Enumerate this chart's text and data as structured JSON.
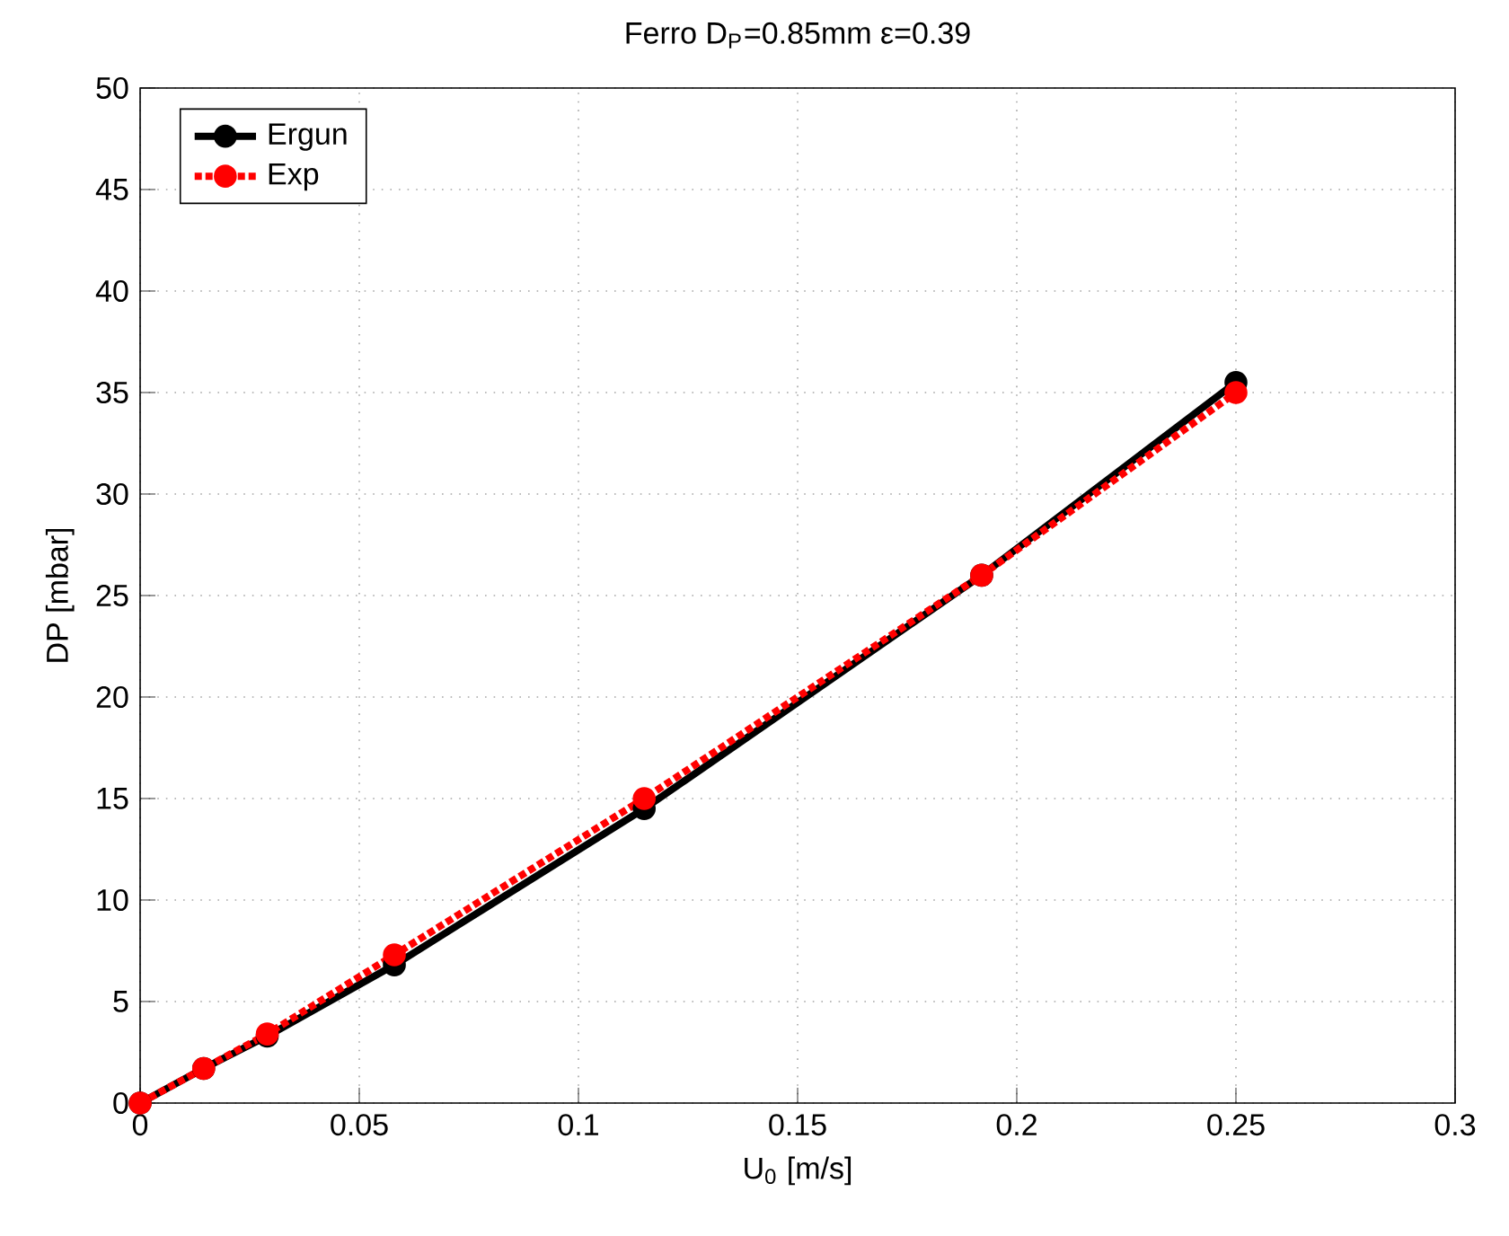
{
  "chart_data": {
    "type": "line",
    "title": "Ferro D$_{P}$=0.85mm ε=0.39",
    "xlabel": "U$_{0}$ [m/s]",
    "ylabel": "DP [mbar]",
    "xlim": [
      0,
      0.3
    ],
    "ylim": [
      0,
      50
    ],
    "xticks": [
      0,
      0.05,
      0.1,
      0.15,
      0.2,
      0.25,
      0.3
    ],
    "yticks": [
      0,
      5,
      10,
      15,
      20,
      25,
      30,
      35,
      40,
      45,
      50
    ],
    "grid": true,
    "legend": "top left",
    "marker": "circle",
    "series": [
      {
        "name": "Ergun",
        "color": "#000000",
        "line_style": "solid",
        "x": [
          0,
          0.0145,
          0.029,
          0.058,
          0.115,
          0.192,
          0.25
        ],
        "values": [
          0,
          1.7,
          3.3,
          6.8,
          14.5,
          26,
          35.5
        ]
      },
      {
        "name": "Exp",
        "color": "#ff0000",
        "line_style": "dotted",
        "x": [
          0,
          0.0145,
          0.029,
          0.058,
          0.115,
          0.192,
          0.25
        ],
        "values": [
          0,
          1.7,
          3.4,
          7.3,
          15,
          26,
          35
        ]
      }
    ]
  }
}
